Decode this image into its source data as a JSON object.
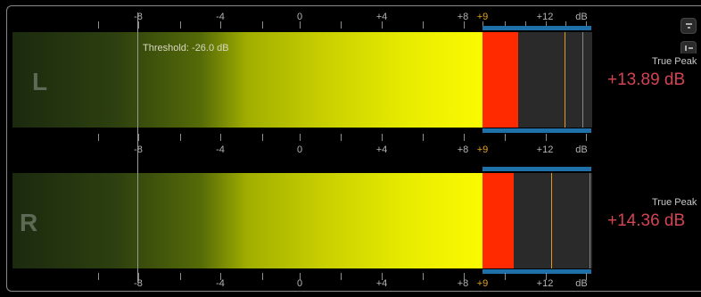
{
  "scale": {
    "labels": [
      "-8",
      "-4",
      "0",
      "+4",
      "+8",
      "+9",
      "+12",
      "dB"
    ]
  },
  "threshold": {
    "label": "Threshold: -26.0 dB"
  },
  "channels": [
    {
      "letter": "L",
      "true_peak_label": "True Peak",
      "true_peak_value": "+13.89 dB"
    },
    {
      "letter": "R",
      "true_peak_label": "True Peak",
      "true_peak_value": "+14.36 dB"
    }
  ],
  "colors": {
    "over": "#ff2a00",
    "peak_marker": "#e09a20",
    "headroom_band": "#1f6fa8",
    "true_peak_value": "#d24454"
  },
  "icons": [
    "meter-mode-icon",
    "meter-settings-icon"
  ]
}
